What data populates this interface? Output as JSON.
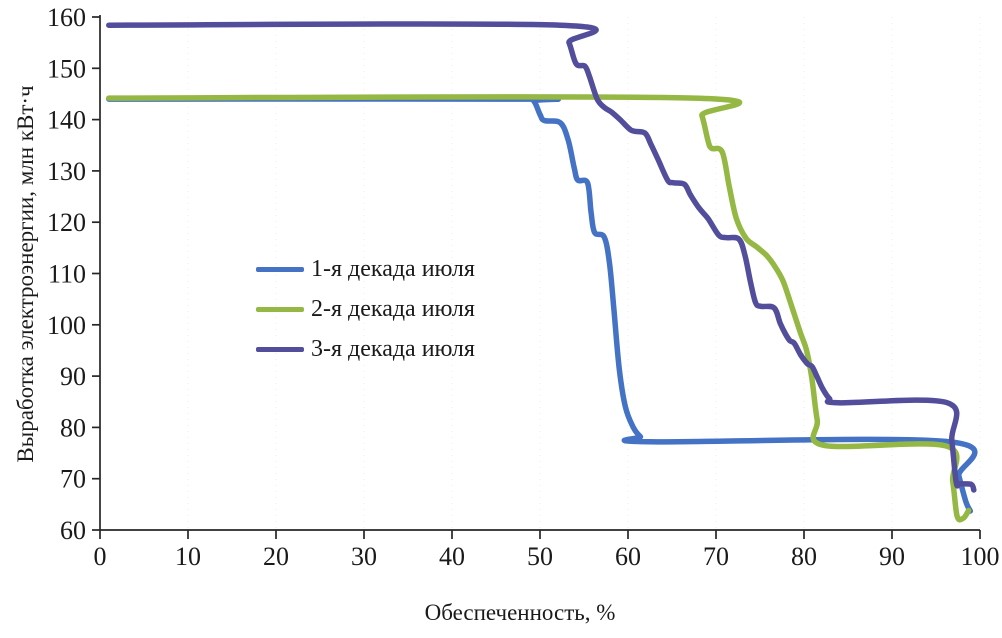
{
  "chart_data": {
    "type": "line",
    "title": "",
    "xlabel": "Обеспеченность, %",
    "ylabel": "Выработка электроэнергии, млн кВт·ч",
    "xlim": [
      0,
      100
    ],
    "ylim": [
      60,
      160
    ],
    "x_ticks": [
      0,
      10,
      20,
      30,
      40,
      50,
      60,
      70,
      80,
      90,
      100
    ],
    "y_ticks": [
      60,
      70,
      80,
      90,
      100,
      110,
      120,
      130,
      140,
      150,
      160
    ],
    "grid": "very faint dotted vertical gridlines at each x tick",
    "legend_position": "inside plot, upper-left of center",
    "colors": {
      "axis": "#262626",
      "text": "#1a1a1a",
      "background": "#ffffff",
      "gridline": "#b8c4a0"
    },
    "series": [
      {
        "name": "1-я декада июля",
        "color": "#4472C4",
        "points": [
          [
            1,
            144
          ],
          [
            48.3,
            144
          ],
          [
            49.3,
            143.6
          ],
          [
            50,
            141
          ],
          [
            50.5,
            139.8
          ],
          [
            52.3,
            139.4
          ],
          [
            53.2,
            136
          ],
          [
            53.9,
            130.5
          ],
          [
            54.3,
            128.2
          ],
          [
            55.4,
            127.7
          ],
          [
            55.8,
            122
          ],
          [
            56.2,
            118
          ],
          [
            57.3,
            117.1
          ],
          [
            57.9,
            112
          ],
          [
            58.4,
            103
          ],
          [
            59,
            91.5
          ],
          [
            59.7,
            84
          ],
          [
            60.6,
            80
          ],
          [
            61.4,
            78.2
          ],
          [
            62.4,
            77.2
          ],
          [
            96.6,
            77.2
          ],
          [
            97.6,
            70.5
          ],
          [
            98.4,
            65.5
          ],
          [
            98.9,
            63.7
          ]
        ]
      },
      {
        "name": "2-я декада июля",
        "color": "#94B843",
        "points": [
          [
            1,
            144.2
          ],
          [
            67.5,
            144.2
          ],
          [
            68.4,
            140.8
          ],
          [
            69.1,
            135.8
          ],
          [
            69.5,
            134.4
          ],
          [
            70.7,
            133.7
          ],
          [
            71.5,
            127
          ],
          [
            72.3,
            120.8
          ],
          [
            73.4,
            116.9
          ],
          [
            74.6,
            115.2
          ],
          [
            75.7,
            113.6
          ],
          [
            76.6,
            111.6
          ],
          [
            77.6,
            108.6
          ],
          [
            78.6,
            103.6
          ],
          [
            79.6,
            98.4
          ],
          [
            80.3,
            95
          ],
          [
            80.9,
            89.5
          ],
          [
            81.5,
            81.5
          ],
          [
            82.3,
            76.5
          ],
          [
            96.1,
            76.4
          ],
          [
            96.9,
            69.5
          ],
          [
            97.4,
            62.7
          ],
          [
            98.1,
            62.3
          ],
          [
            98.7,
            63.8
          ]
        ]
      },
      {
        "name": "3-я декада июля",
        "color": "#524E9B",
        "points": [
          [
            1,
            158.4
          ],
          [
            52.3,
            158.4
          ],
          [
            53.3,
            155
          ],
          [
            54.1,
            150.9
          ],
          [
            55.1,
            150.4
          ],
          [
            55.6,
            148.5
          ],
          [
            56.5,
            144
          ],
          [
            57.3,
            142.4
          ],
          [
            58.1,
            141.5
          ],
          [
            59.1,
            140
          ],
          [
            60.4,
            137.9
          ],
          [
            61.9,
            137.4
          ],
          [
            62.6,
            135.2
          ],
          [
            63.4,
            132.3
          ],
          [
            64.5,
            128.2
          ],
          [
            65.1,
            127.7
          ],
          [
            66.4,
            127.4
          ],
          [
            67.1,
            125.3
          ],
          [
            68.1,
            122.7
          ],
          [
            69.1,
            120.7
          ],
          [
            70.3,
            117.5
          ],
          [
            71.1,
            117
          ],
          [
            72.6,
            116.7
          ],
          [
            73.3,
            113.5
          ],
          [
            73.9,
            108.5
          ],
          [
            74.5,
            104.3
          ],
          [
            75.1,
            103.6
          ],
          [
            76.6,
            103.3
          ],
          [
            77.3,
            100.3
          ],
          [
            77.9,
            98.2
          ],
          [
            78.4,
            96.9
          ],
          [
            78.9,
            96.4
          ],
          [
            79.6,
            94.2
          ],
          [
            80.4,
            92.4
          ],
          [
            80.9,
            91.9
          ],
          [
            81.4,
            90.2
          ],
          [
            82.1,
            87.6
          ],
          [
            82.9,
            85.6
          ],
          [
            83.9,
            84.8
          ],
          [
            96.3,
            84.8
          ],
          [
            96.8,
            77.5
          ],
          [
            97.3,
            69.3
          ],
          [
            97.7,
            69
          ],
          [
            99,
            68.9
          ],
          [
            99.3,
            67.8
          ]
        ]
      }
    ]
  }
}
